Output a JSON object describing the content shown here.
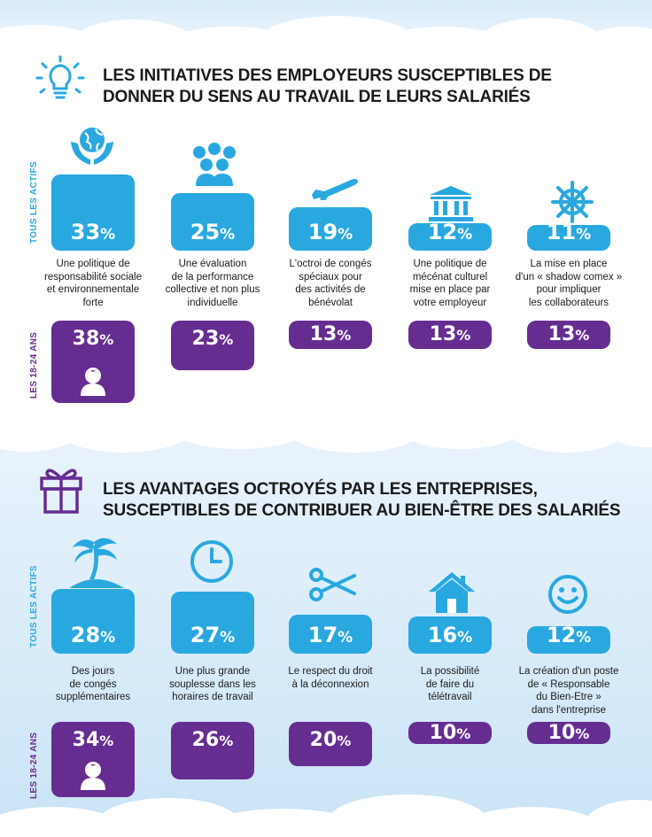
{
  "section1": {
    "title_line1": "LES INITIATIVES DES EMPLOYEURS SUSCEPTIBLES DE",
    "title_line2": "DONNER DU SENS AU TRAVAIL DE LEURS SALARIÉS",
    "row_label_all": "TOUS LES ACTIFS",
    "row_label_young": "LES 18-24 ANS",
    "icon": "lightbulb-icon"
  },
  "section2": {
    "title_line1": "LES AVANTAGES OCTROYÉS PAR LES ENTREPRISES,",
    "title_line2": "SUSCEPTIBLES DE CONTRIBUER AU BIEN-ÊTRE DES SALARIÉS",
    "row_label_all": "TOUS LES ACTIFS",
    "row_label_young": "LES 18-24 ANS",
    "icon": "gift-icon"
  },
  "colors": {
    "blue": "#29a8e0",
    "purple": "#662d91",
    "icon_blue": "#29a8e0"
  },
  "chart_data": [
    {
      "type": "bar",
      "title": "LES INITIATIVES DES EMPLOYEURS SUSCEPTIBLES DE DONNER DU SENS AU TRAVAIL DE LEURS SALARIÉS",
      "categories": [
        "Une politique de responsabilité sociale et environnementale forte",
        "Une évaluation de la performance collective et non plus individuelle",
        "L'octroi de congés spéciaux pour des activités de bénévolat",
        "Une politique de mécénat culturel mise en place par votre employeur",
        "La mise en place d'un « shadow comex » pour impliquer les collaborateurs"
      ],
      "series": [
        {
          "name": "TOUS LES ACTIFS",
          "values": [
            33,
            25,
            19,
            12,
            11
          ]
        },
        {
          "name": "LES 18-24 ANS",
          "values": [
            38,
            23,
            13,
            13,
            13
          ]
        }
      ],
      "unit": "%",
      "category_icons": [
        "globe-hands-icon",
        "group-icon",
        "airplane-icon",
        "museum-icon",
        "helm-icon"
      ]
    },
    {
      "type": "bar",
      "title": "LES AVANTAGES OCTROYÉS PAR LES ENTREPRISES, SUSCEPTIBLES DE CONTRIBUER AU BIEN-ÊTRE DES SALARIÉS",
      "categories": [
        "Des jours de congés supplémentaires",
        "Une plus grande souplesse dans les horaires de travail",
        "Le respect du droit à la déconnexion",
        "La possibilité de faire du télétravail",
        "La création d'un poste de « Responsable du Bien-Etre » dans l'entreprise"
      ],
      "series": [
        {
          "name": "TOUS LES ACTIFS",
          "values": [
            28,
            27,
            17,
            16,
            12
          ]
        },
        {
          "name": "LES 18-24 ANS",
          "values": [
            34,
            26,
            20,
            10,
            10
          ]
        }
      ],
      "unit": "%",
      "category_icons": [
        "palm-island-icon",
        "clock-icon",
        "scissors-icon",
        "house-icon",
        "smiley-icon"
      ]
    }
  ],
  "desc1": [
    [
      "Une politique de",
      "responsabilité sociale",
      "et environnementale",
      "forte"
    ],
    [
      "Une évaluation",
      "de la performance",
      "collective et non plus",
      "individuelle"
    ],
    [
      "L'octroi de congés",
      "spéciaux pour",
      "des activités de",
      "bénévolat"
    ],
    [
      "Une politique de",
      "mécénat culturel",
      "mise en place par",
      "votre employeur"
    ],
    [
      "La mise en place",
      "d'un « shadow comex »",
      "pour impliquer",
      "les collaborateurs"
    ]
  ],
  "desc2": [
    [
      "Des jours",
      "de congés",
      "supplémentaires"
    ],
    [
      "Une plus grande",
      "souplesse dans les",
      "horaires de travail"
    ],
    [
      "Le respect du droit",
      "à la déconnexion"
    ],
    [
      "La possibilité",
      "de faire du",
      "télétravail"
    ],
    [
      "La création d'un poste",
      "de « Responsable",
      "du Bien-Etre »",
      "dans l'entreprise"
    ]
  ],
  "pct_symbol": "%",
  "young_icon": "person-icon"
}
